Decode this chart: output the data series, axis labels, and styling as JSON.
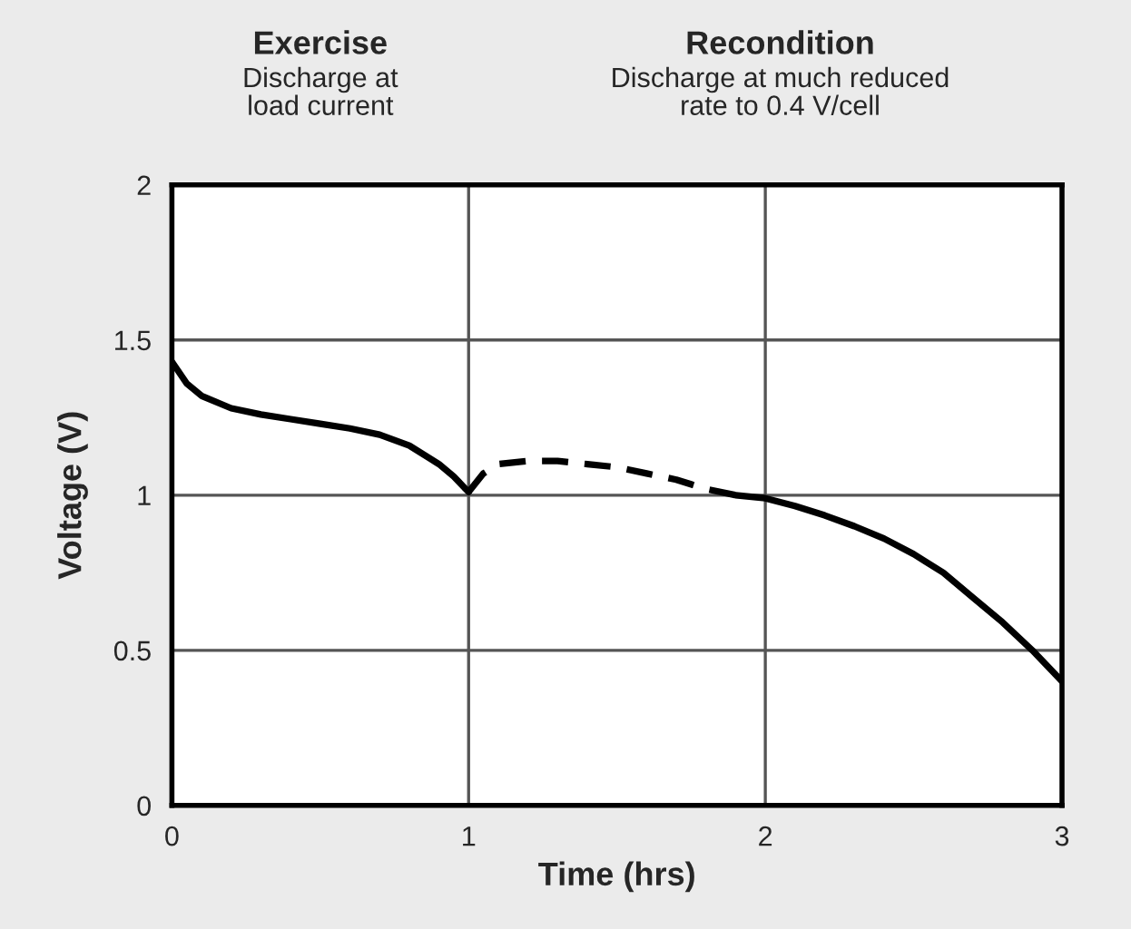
{
  "chart_data": {
    "type": "line",
    "xlabel": "Time (hrs)",
    "ylabel": "Voltage (V)",
    "xlim": [
      0,
      3
    ],
    "ylim": [
      0,
      2
    ],
    "xticks": [
      0,
      1,
      2,
      3
    ],
    "yticks": [
      0,
      0.5,
      1,
      1.5,
      2
    ],
    "grid": true,
    "legend": false,
    "marker": "none",
    "annotations": [
      "Exercise",
      "Discharge at\nload current",
      "Recondition",
      "Discharge at much reduced\nrate to 0.4 V/cell"
    ],
    "series": [
      {
        "color": "#000000",
        "line_style": "solid",
        "x": [
          0,
          0.05,
          0.1,
          0.2,
          0.3,
          0.4,
          0.5,
          0.6,
          0.7,
          0.8,
          0.9,
          0.95,
          1.0
        ],
        "values": [
          1.43,
          1.36,
          1.32,
          1.28,
          1.26,
          1.245,
          1.23,
          1.215,
          1.195,
          1.16,
          1.1,
          1.06,
          1.01
        ]
      },
      {
        "color": "#000000",
        "line_style": "dashed",
        "x": [
          1.0,
          1.05,
          1.1,
          1.2,
          1.3,
          1.4,
          1.5,
          1.6,
          1.7,
          1.8,
          1.9
        ],
        "values": [
          1.01,
          1.07,
          1.1,
          1.11,
          1.11,
          1.1,
          1.09,
          1.07,
          1.05,
          1.02,
          1.0
        ]
      },
      {
        "color": "#000000",
        "line_style": "solid",
        "x": [
          1.9,
          2.0,
          2.1,
          2.2,
          2.3,
          2.4,
          2.5,
          2.6,
          2.7,
          2.8,
          2.9,
          3.0
        ],
        "values": [
          1.0,
          0.99,
          0.965,
          0.935,
          0.9,
          0.86,
          0.81,
          0.75,
          0.67,
          0.59,
          0.5,
          0.4
        ]
      }
    ]
  }
}
